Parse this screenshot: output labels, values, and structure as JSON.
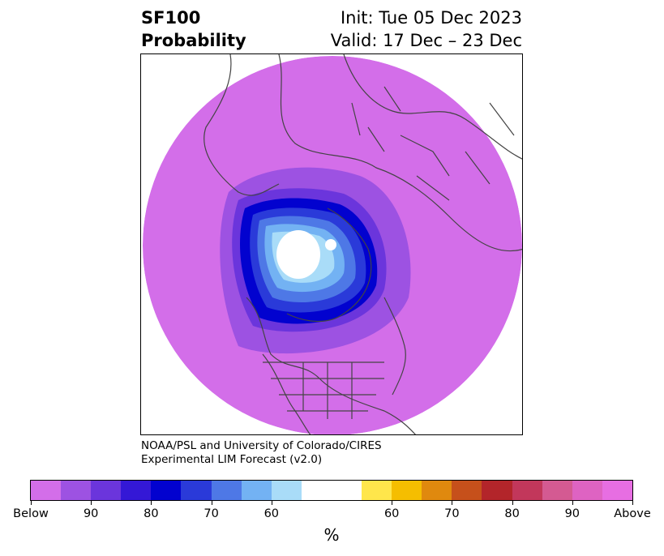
{
  "title_left": [
    "SF100",
    "Probability"
  ],
  "title_right": [
    "Init: Tue 05 Dec 2023",
    "Valid: 17 Dec – 23 Dec"
  ],
  "credit": [
    "NOAA/PSL and University of Colorado/CIRES",
    "Experimental LIM Forecast (v2.0)"
  ],
  "colorbar": {
    "colors": [
      "#d36ee9",
      "#9d52e2",
      "#6b35dc",
      "#3418d6",
      "#0202cf",
      "#2a3ad9",
      "#4e78e6",
      "#73b2f3",
      "#a9dcf8",
      "#ffffff",
      "#ffe64b",
      "#f5be00",
      "#e0890e",
      "#c6501b",
      "#b3252a",
      "#c2375b",
      "#d45a92",
      "#de63c2",
      "#e76ee2"
    ],
    "ticks": [
      "Below",
      "90",
      "80",
      "70",
      "60",
      "60",
      "70",
      "80",
      "90",
      "Above"
    ],
    "unit": "%"
  }
}
